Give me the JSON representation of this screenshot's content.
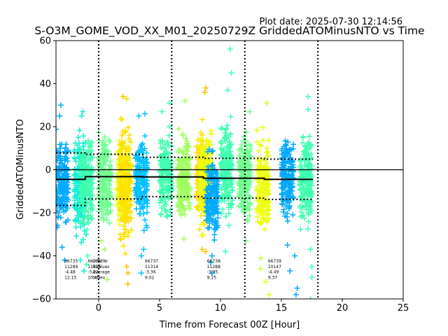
{
  "chart_data": {
    "type": "scatter",
    "plot_date": "Plot date: 2025-07-30 12:14:56",
    "title": "S-O3M_GOME_VOD_XX_M01_20250729Z GriddedATOMinusNTO vs Time",
    "xlabel": "Time from Forecast 00Z [Hour]",
    "ylabel": "GriddedATOMinusNTO",
    "xlim": [
      -3.5,
      25
    ],
    "ylim": [
      -60,
      60
    ],
    "xticks": [
      0,
      5,
      10,
      15,
      20,
      25
    ],
    "yticks": [
      -60,
      -40,
      -20,
      0,
      20,
      40,
      60
    ],
    "zero_line": 0,
    "vertical_dotted_lines": [
      0,
      6,
      12,
      18
    ],
    "colors": {
      "deep_sky": "#00aaff",
      "sky": "#00c0ff",
      "aqua": "#14f0d2",
      "spring": "#40ffb0",
      "mint": "#70ff90",
      "lime": "#a0ff60",
      "chartreuse": "#c8ff38",
      "yellow": "#ecff10",
      "gold": "#ffe000",
      "amber": "#ffc000"
    },
    "clusters": [
      {
        "x": -3.0,
        "lo": -33,
        "hi": 21,
        "color": "deep_sky"
      },
      {
        "x": -1.5,
        "lo": -37,
        "hi": 22,
        "color": "aqua"
      },
      {
        "x": -1.0,
        "lo": -33,
        "hi": 21,
        "color": "spring"
      },
      {
        "x": 0.5,
        "lo": -36,
        "hi": 22,
        "color": "mint"
      },
      {
        "x": 2.0,
        "lo": -33,
        "hi": 22,
        "color": "yellow"
      },
      {
        "x": 2.2,
        "lo": -42,
        "hi": 30,
        "color": "gold"
      },
      {
        "x": 3.5,
        "lo": -31,
        "hi": 21,
        "color": "sky"
      },
      {
        "x": 5.5,
        "lo": -27,
        "hi": 22,
        "color": "spring"
      },
      {
        "x": 7.0,
        "lo": -30,
        "hi": 23,
        "color": "lime"
      },
      {
        "x": 8.5,
        "lo": -33,
        "hi": 25,
        "color": "gold"
      },
      {
        "x": 8.8,
        "lo": -33,
        "hi": 23,
        "color": "yellow"
      },
      {
        "x": 9.3,
        "lo": -37,
        "hi": 14,
        "color": "deep_sky"
      },
      {
        "x": 10.5,
        "lo": -30,
        "hi": 30,
        "color": "spring"
      },
      {
        "x": 12.0,
        "lo": -30,
        "hi": 24,
        "color": "mint"
      },
      {
        "x": 13.5,
        "lo": -37,
        "hi": 22,
        "color": "yellow"
      },
      {
        "x": 15.5,
        "lo": -30,
        "hi": 21,
        "color": "deep_sky"
      },
      {
        "x": 17.0,
        "lo": -31,
        "hi": 22,
        "color": "spring"
      }
    ],
    "outliers": [
      {
        "x": -3.1,
        "y": 30,
        "color": "deep_sky"
      },
      {
        "x": -3.2,
        "y": 25,
        "color": "deep_sky"
      },
      {
        "x": -3.0,
        "y": -36,
        "color": "deep_sky"
      },
      {
        "x": -2.8,
        "y": -42,
        "color": "deep_sky"
      },
      {
        "x": -1.3,
        "y": 27,
        "color": "aqua"
      },
      {
        "x": -1.4,
        "y": 25,
        "color": "aqua"
      },
      {
        "x": -1.5,
        "y": -42,
        "color": "aqua"
      },
      {
        "x": -1.2,
        "y": -47,
        "color": "aqua"
      },
      {
        "x": -1.0,
        "y": -44,
        "color": "spring"
      },
      {
        "x": -0.9,
        "y": -40,
        "color": "spring"
      },
      {
        "x": 0.7,
        "y": -51,
        "color": "lime"
      },
      {
        "x": 0.5,
        "y": -37,
        "color": "lime"
      },
      {
        "x": 0.2,
        "y": -33,
        "color": "lime"
      },
      {
        "x": 2.0,
        "y": 34,
        "color": "amber"
      },
      {
        "x": 2.3,
        "y": 33,
        "color": "gold"
      },
      {
        "x": 2.3,
        "y": -45,
        "color": "amber"
      },
      {
        "x": 2.4,
        "y": -48,
        "color": "amber"
      },
      {
        "x": 2.4,
        "y": -53,
        "color": "amber"
      },
      {
        "x": 2.2,
        "y": -39,
        "color": "gold"
      },
      {
        "x": 1.8,
        "y": -32,
        "color": "gold"
      },
      {
        "x": 3.3,
        "y": 25,
        "color": "sky"
      },
      {
        "x": 3.8,
        "y": 26,
        "color": "sky"
      },
      {
        "x": 3.7,
        "y": -37,
        "color": "sky"
      },
      {
        "x": 3.5,
        "y": -40,
        "color": "sky"
      },
      {
        "x": 3.5,
        "y": -48,
        "color": "sky"
      },
      {
        "x": 5.2,
        "y": 27,
        "color": "spring"
      },
      {
        "x": 5.8,
        "y": 31,
        "color": "spring"
      },
      {
        "x": 7.1,
        "y": 32,
        "color": "lime"
      },
      {
        "x": 7.0,
        "y": -32,
        "color": "lime"
      },
      {
        "x": 8.8,
        "y": 38,
        "color": "amber"
      },
      {
        "x": 8.7,
        "y": 36,
        "color": "amber"
      },
      {
        "x": 8.5,
        "y": -37,
        "color": "amber"
      },
      {
        "x": 8.8,
        "y": -38,
        "color": "amber"
      },
      {
        "x": 9.3,
        "y": -40,
        "color": "deep_sky"
      },
      {
        "x": 9.2,
        "y": -43,
        "color": "deep_sky"
      },
      {
        "x": 9.3,
        "y": -48,
        "color": "deep_sky"
      },
      {
        "x": 10.8,
        "y": 56,
        "color": "spring"
      },
      {
        "x": 10.9,
        "y": 45,
        "color": "spring"
      },
      {
        "x": 10.6,
        "y": 37,
        "color": "spring"
      },
      {
        "x": 10.4,
        "y": -38,
        "color": "spring"
      },
      {
        "x": 12.4,
        "y": 27,
        "color": "mint"
      },
      {
        "x": 12.1,
        "y": -33,
        "color": "mint"
      },
      {
        "x": 13.8,
        "y": 31,
        "color": "chartreuse"
      },
      {
        "x": 13.3,
        "y": -41,
        "color": "chartreuse"
      },
      {
        "x": 13.3,
        "y": -46,
        "color": "chartreuse"
      },
      {
        "x": 13.7,
        "y": -52,
        "color": "yellow"
      },
      {
        "x": 14.0,
        "y": -58,
        "color": "yellow"
      },
      {
        "x": 15.5,
        "y": -35,
        "color": "deep_sky"
      },
      {
        "x": 16.1,
        "y": -40,
        "color": "deep_sky"
      },
      {
        "x": 15.7,
        "y": -47,
        "color": "deep_sky"
      },
      {
        "x": 16.2,
        "y": -58,
        "color": "deep_sky"
      },
      {
        "x": 16.3,
        "y": -55,
        "color": "deep_sky"
      },
      {
        "x": 17.2,
        "y": 34,
        "color": "spring"
      },
      {
        "x": 17.2,
        "y": 28,
        "color": "spring"
      },
      {
        "x": 17.4,
        "y": -37,
        "color": "spring"
      },
      {
        "x": 17.5,
        "y": -45,
        "color": "spring"
      },
      {
        "x": 17.5,
        "y": -50,
        "color": "spring"
      },
      {
        "x": 17.4,
        "y": -60,
        "color": "spring"
      }
    ],
    "mean_line": [
      {
        "x0": -3.5,
        "x1": -1.1,
        "y": -4.48
      },
      {
        "x0": -1.1,
        "x1": 3.6,
        "y": -3.22
      },
      {
        "x0": 3.6,
        "x1": 8.6,
        "y": -3.36
      },
      {
        "x0": 8.6,
        "x1": 13.6,
        "y": -3.95
      },
      {
        "x0": 13.6,
        "x1": 17.6,
        "y": -4.49
      }
    ],
    "upper_dotted": [
      {
        "x0": -3.5,
        "x1": -1.1,
        "y": 7.8
      },
      {
        "x0": -1.1,
        "x1": 3.6,
        "y": 7.2
      },
      {
        "x0": 3.6,
        "x1": 8.6,
        "y": 5.8
      },
      {
        "x0": 8.6,
        "x1": 13.6,
        "y": 5.3
      },
      {
        "x0": 13.6,
        "x1": 17.6,
        "y": 4.9
      }
    ],
    "lower_dotted": [
      {
        "x0": -3.5,
        "x1": -1.1,
        "y": -16.6
      },
      {
        "x0": -1.1,
        "x1": 3.6,
        "y": -13.6
      },
      {
        "x0": 3.6,
        "x1": 8.6,
        "y": -12.5
      },
      {
        "x0": 8.6,
        "x1": 13.6,
        "y": -13.2
      },
      {
        "x0": 13.6,
        "x1": 17.6,
        "y": -13.8
      }
    ],
    "stats_labels": [
      "OrbitNr",
      "NValues",
      "Average",
      "StDev"
    ],
    "stats_labels_x": -0.5,
    "stats": [
      {
        "x": -2.8,
        "values": [
          "66735",
          "11289",
          "-4.48",
          "12.15"
        ]
      },
      {
        "x": -0.9,
        "values": [
          "66736",
          "11326",
          "-3.22",
          "10.45"
        ]
      },
      {
        "x": 3.8,
        "values": [
          "66737",
          "11314",
          "-3.36",
          "9.02"
        ]
      },
      {
        "x": 8.9,
        "values": [
          "66738",
          "11288",
          "-3.95",
          "9.25"
        ]
      },
      {
        "x": 13.9,
        "values": [
          "66739",
          "10147",
          "-4.49",
          "9.37"
        ]
      }
    ]
  }
}
